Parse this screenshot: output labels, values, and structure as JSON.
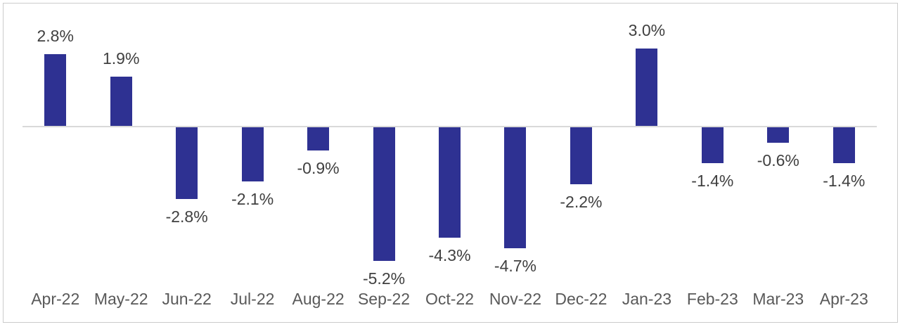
{
  "chart_data": {
    "type": "bar",
    "title": "",
    "xlabel": "",
    "ylabel": "",
    "categories": [
      "Apr-22",
      "May-22",
      "Jun-22",
      "Jul-22",
      "Aug-22",
      "Sep-22",
      "Oct-22",
      "Nov-22",
      "Dec-22",
      "Jan-23",
      "Feb-23",
      "Mar-23",
      "Apr-23"
    ],
    "values": [
      2.8,
      1.9,
      -2.8,
      -2.1,
      -0.9,
      -5.2,
      -4.3,
      -4.7,
      -2.2,
      3.0,
      -1.4,
      -0.6,
      -1.4
    ],
    "data_labels": [
      "2.8%",
      "1.9%",
      "-2.8%",
      "-2.1%",
      "-0.9%",
      "-5.2%",
      "-4.3%",
      "-4.7%",
      "-2.2%",
      "3.0%",
      "-1.4%",
      "-0.6%",
      "-1.4%"
    ],
    "ylim": [
      -6,
      4
    ],
    "grid": false,
    "legend": "none",
    "value_axis_visible": false,
    "colors": {
      "bar": "#2E3192",
      "data_label": "#404040",
      "axis_tick_label": "#595959",
      "axis_line": "#D9D9D9",
      "frame_border": "#CBCBCB",
      "background": "#FFFFFF"
    }
  }
}
